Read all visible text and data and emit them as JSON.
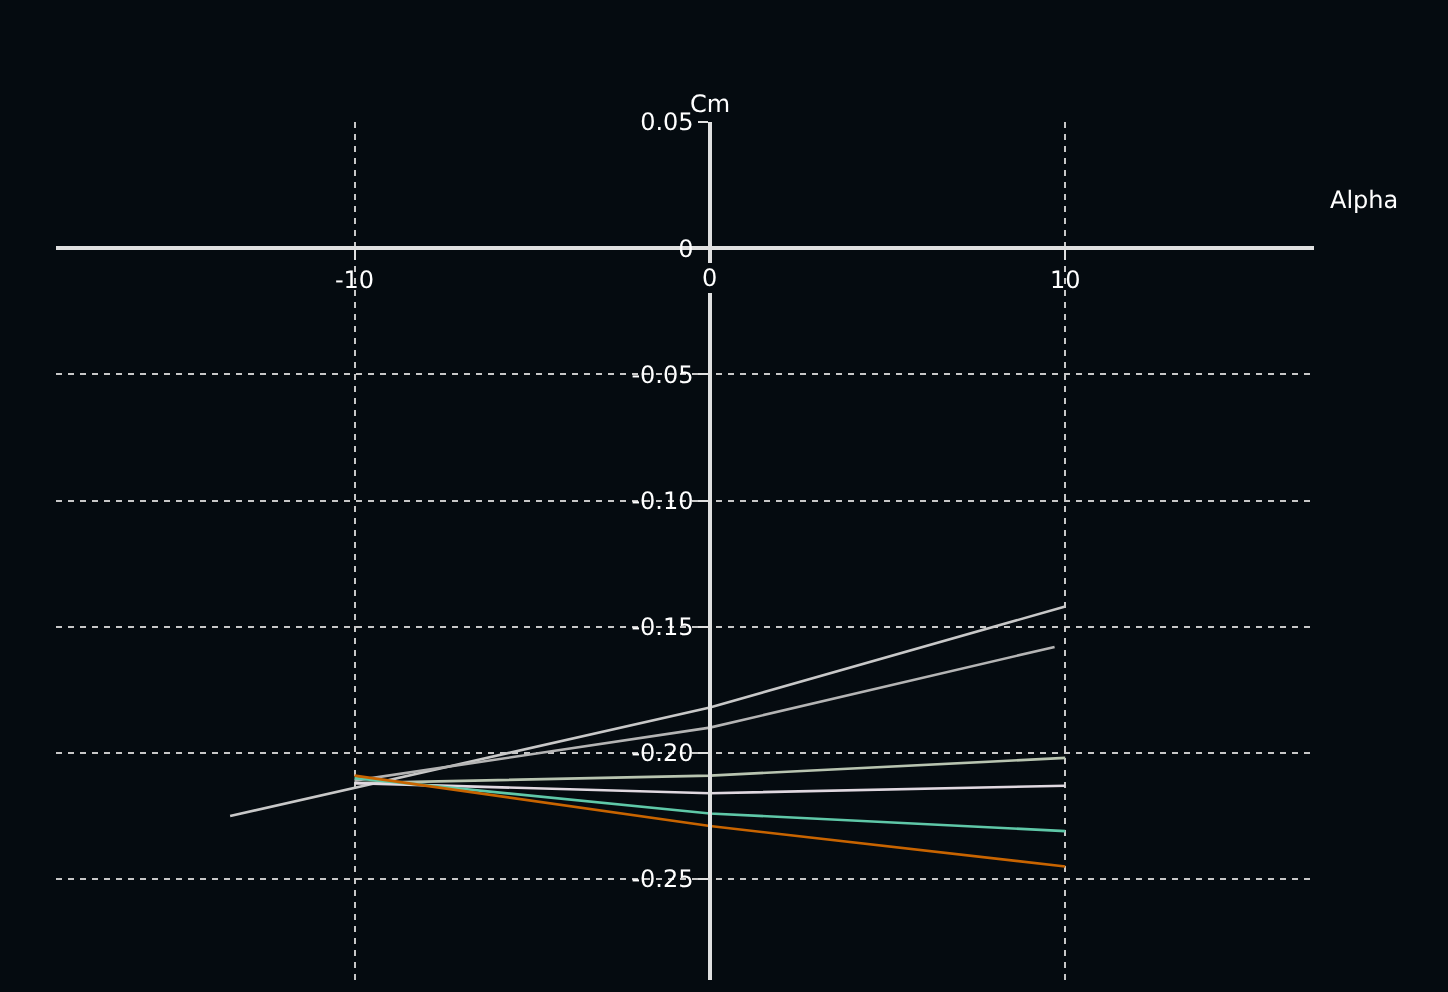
{
  "chart_data": {
    "type": "line",
    "xlabel": "Alpha",
    "ylabel": "Cm",
    "xlim": [
      -18.4,
      17
    ],
    "ylim": [
      -0.29,
      0.05
    ],
    "xticks": [
      -10,
      0,
      10
    ],
    "yticks": [
      0.05,
      0,
      -0.05,
      {
        "value": -0.1,
        "label": "-0.10"
      },
      -0.15,
      {
        "value": -0.2,
        "label": "-0.20"
      },
      -0.25
    ],
    "grid": true,
    "line_style": "solid",
    "marker": "none",
    "series": [
      {
        "color": "#c8c8c8",
        "x": [
          -13.5,
          0,
          10
        ],
        "values": [
          -0.225,
          -0.182,
          -0.142
        ]
      },
      {
        "color": "#b4b4b4",
        "x": [
          -10,
          0,
          9.7
        ],
        "values": [
          -0.211,
          -0.19,
          -0.158
        ]
      },
      {
        "color": "#b8c4b0",
        "x": [
          -10,
          0,
          10
        ],
        "values": [
          -0.212,
          -0.209,
          -0.202
        ]
      },
      {
        "color": "#e0d8e0",
        "x": [
          -10,
          0,
          10
        ],
        "values": [
          -0.212,
          -0.216,
          -0.213
        ]
      },
      {
        "color": "#5fc8a8",
        "x": [
          -10,
          0,
          10
        ],
        "values": [
          -0.21,
          -0.224,
          -0.231
        ]
      },
      {
        "color": "#c86400",
        "x": [
          -10,
          0,
          10
        ],
        "values": [
          -0.209,
          -0.229,
          -0.245
        ]
      }
    ]
  }
}
